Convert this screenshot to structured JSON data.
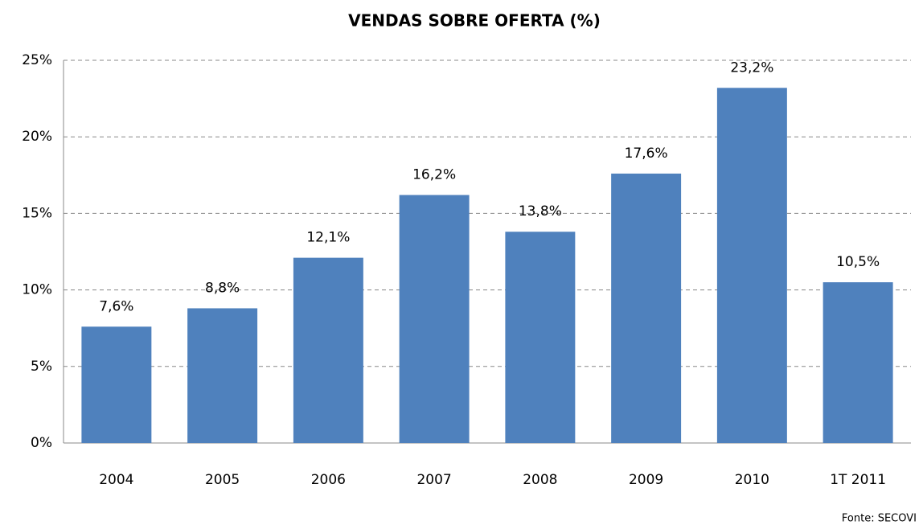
{
  "chart_data": {
    "type": "bar",
    "title": "VENDAS SOBRE OFERTA (%)",
    "categories": [
      "2004",
      "2005",
      "2006",
      "2007",
      "2008",
      "2009",
      "2010",
      "1T 2011"
    ],
    "values": [
      7.6,
      8.8,
      12.1,
      16.2,
      13.8,
      17.6,
      23.2,
      10.5
    ],
    "value_labels": [
      "7,6%",
      "8,8%",
      "12,1%",
      "16,2%",
      "13,8%",
      "17,6%",
      "23,2%",
      "10,5%"
    ],
    "color": "#4f81bd",
    "ylim": [
      0,
      25
    ],
    "yticks": [
      {
        "value": 0,
        "label": "0%"
      },
      {
        "value": 5,
        "label": "5%"
      },
      {
        "value": 10,
        "label": "10%"
      },
      {
        "value": 15,
        "label": "15%"
      },
      {
        "value": 20,
        "label": "20%"
      },
      {
        "value": 25,
        "label": "25%"
      }
    ],
    "grid": true,
    "source": "Fonte: SECOVI"
  }
}
